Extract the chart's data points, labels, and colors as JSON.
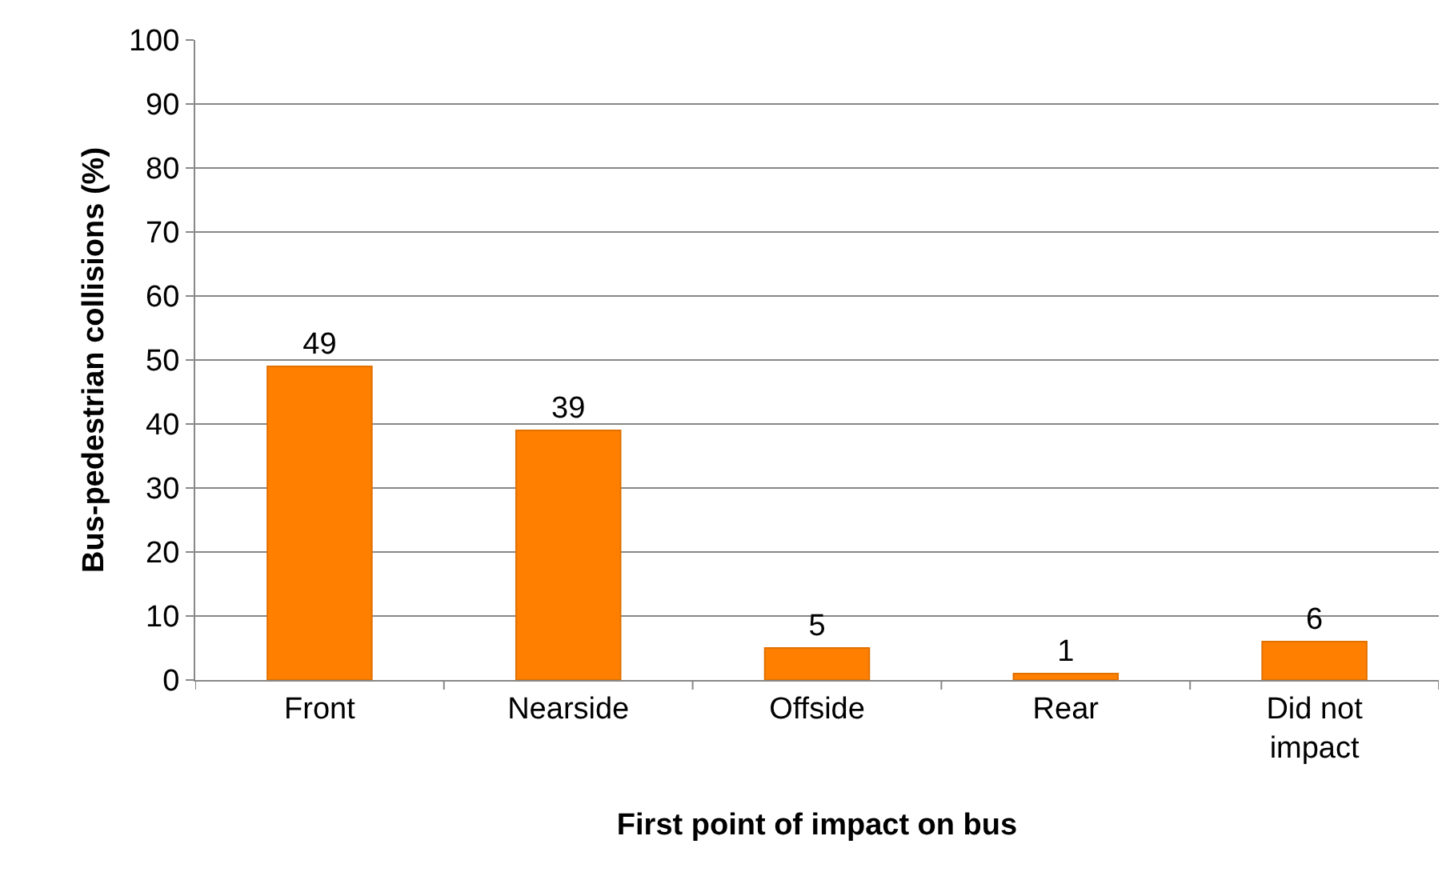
{
  "chart_data": {
    "type": "bar",
    "xlabel": "First point of impact on bus",
    "ylabel": "Bus-pedestrian collisions (%)",
    "categories": [
      "Front",
      "Nearside",
      "Offside",
      "Rear",
      "Did not impact"
    ],
    "values": [
      49,
      39,
      5,
      1,
      6
    ],
    "color": "#ff8000",
    "ylim": [
      0,
      100
    ],
    "yticks": [
      0,
      10,
      20,
      30,
      40,
      50,
      60,
      70,
      80,
      90,
      100
    ],
    "grid": "y",
    "data_labels": true
  }
}
